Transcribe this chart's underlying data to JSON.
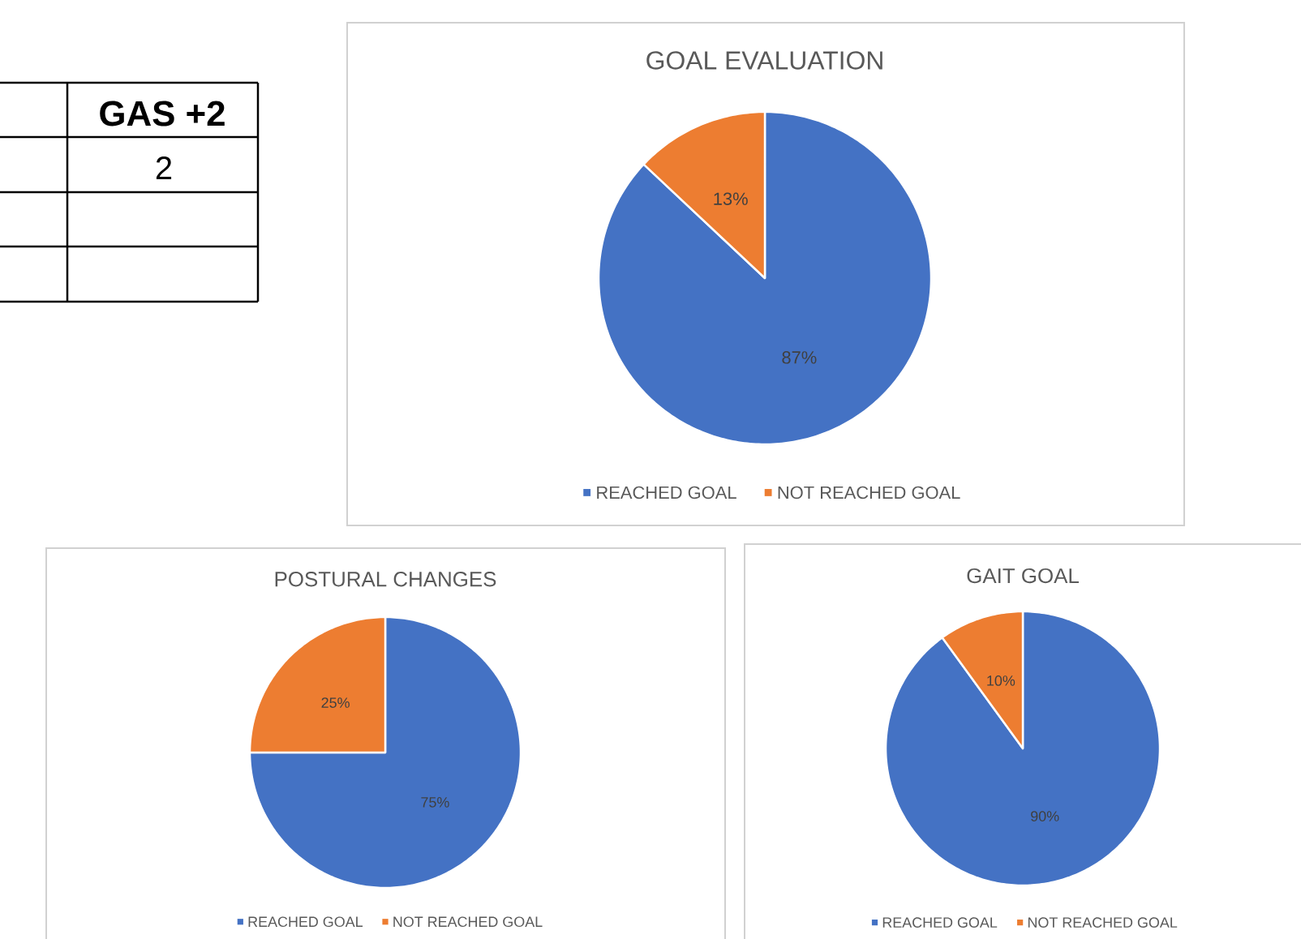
{
  "chart_data": [
    {
      "type": "other",
      "annotations": [
        "GAS +2",
        "2"
      ]
    },
    {
      "type": "pie",
      "title": "GOAL EVALUATION",
      "categories": [
        "REACHED GOAL",
        "NOT REACHED GOAL"
      ],
      "values": [
        87,
        13
      ],
      "value_labels": [
        "87%",
        "13%"
      ],
      "colors": [
        "#4472c4",
        "#ed7d31"
      ],
      "legend": "bottom"
    },
    {
      "type": "pie",
      "title": "POSTURAL CHANGES",
      "categories": [
        "REACHED GOAL",
        "NOT REACHED GOAL"
      ],
      "values": [
        75,
        25
      ],
      "value_labels": [
        "75%",
        "25%"
      ],
      "colors": [
        "#4472c4",
        "#ed7d31"
      ],
      "legend": "bottom"
    },
    {
      "type": "pie",
      "title": "GAIT GOAL",
      "categories": [
        "REACHED GOAL",
        "NOT REACHED GOAL"
      ],
      "values": [
        90,
        10
      ],
      "value_labels": [
        "90%",
        "10%"
      ],
      "colors": [
        "#4472c4",
        "#ed7d31"
      ],
      "legend": "bottom"
    }
  ]
}
